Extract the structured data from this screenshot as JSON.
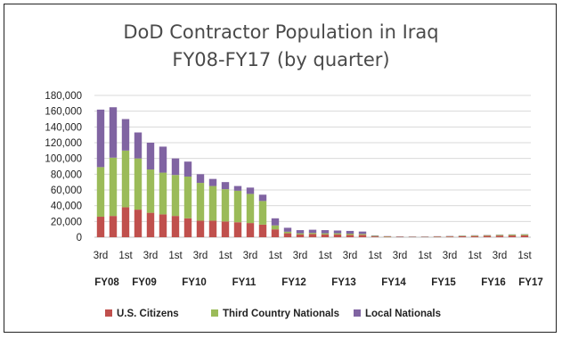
{
  "chart_data": {
    "type": "bar",
    "stacked": true,
    "title": "DoD Contractor  Population in Iraq",
    "subtitle": "FY08-FY17 (by quarter)",
    "xlabel": "",
    "ylabel": "",
    "ylim": [
      0,
      180000
    ],
    "yticks": [
      "0",
      "20,000",
      "40,000",
      "60,000",
      "80,000",
      "100,000",
      "120,000",
      "140,000",
      "160,000",
      "180,000"
    ],
    "grid": true,
    "legend_position": "bottom",
    "colors": {
      "us": "#c0504d",
      "tcn": "#9bbb59",
      "ln": "#8064a2"
    },
    "quarter_labels": [
      "3rd",
      "1st",
      "3rd",
      "1st",
      "3rd",
      "1st",
      "3rd",
      "1st",
      "3rd",
      "1st",
      "3rd",
      "1st",
      "3rd",
      "1st",
      "3rd",
      "1st",
      "3rd",
      "1st"
    ],
    "quarter_label_bars": [
      0,
      2,
      4,
      6,
      8,
      10,
      12,
      14,
      16,
      18,
      20,
      22,
      24,
      26,
      28,
      30,
      32,
      34
    ],
    "fiscal_years": [
      {
        "label": "FY08",
        "bar": 0.5
      },
      {
        "label": "FY09",
        "bar": 3.5
      },
      {
        "label": "FY10",
        "bar": 7.5
      },
      {
        "label": "FY11",
        "bar": 11.5
      },
      {
        "label": "FY12",
        "bar": 15.5
      },
      {
        "label": "FY13",
        "bar": 19.5
      },
      {
        "label": "FY14",
        "bar": 23.5
      },
      {
        "label": "FY15",
        "bar": 27.5
      },
      {
        "label": "FY16",
        "bar": 31.5
      },
      {
        "label": "FY17",
        "bar": 34.5
      }
    ],
    "series": [
      {
        "name": "U.S. Citizens",
        "key": "us",
        "values": [
          26000,
          27000,
          38000,
          35000,
          31000,
          29000,
          27000,
          24000,
          21000,
          21000,
          20000,
          19000,
          18000,
          16000,
          10000,
          5000,
          3500,
          4000,
          3500,
          3500,
          3000,
          3000,
          1000,
          600,
          500,
          400,
          400,
          600,
          900,
          1200,
          1500,
          1800,
          2000,
          2200,
          2400
        ]
      },
      {
        "name": "Third Country Nationals",
        "key": "tcn",
        "values": [
          63000,
          74000,
          72000,
          65000,
          55000,
          53000,
          52000,
          53000,
          48000,
          44000,
          41000,
          40000,
          37000,
          30000,
          5000,
          2000,
          1500,
          1500,
          1500,
          1500,
          1500,
          1200,
          700,
          500,
          300,
          300,
          300,
          400,
          500,
          600,
          700,
          800,
          1000,
          1100,
          1300
        ]
      },
      {
        "name": "Local Nationals",
        "key": "ln",
        "values": [
          73000,
          64000,
          40000,
          33000,
          34000,
          33000,
          21000,
          19000,
          11000,
          9000,
          9000,
          6000,
          8000,
          8000,
          9000,
          5000,
          4000,
          4000,
          4000,
          3500,
          3500,
          3000,
          500,
          300,
          300,
          300,
          300,
          300,
          300,
          300,
          300,
          300,
          300,
          300,
          300
        ]
      }
    ]
  }
}
